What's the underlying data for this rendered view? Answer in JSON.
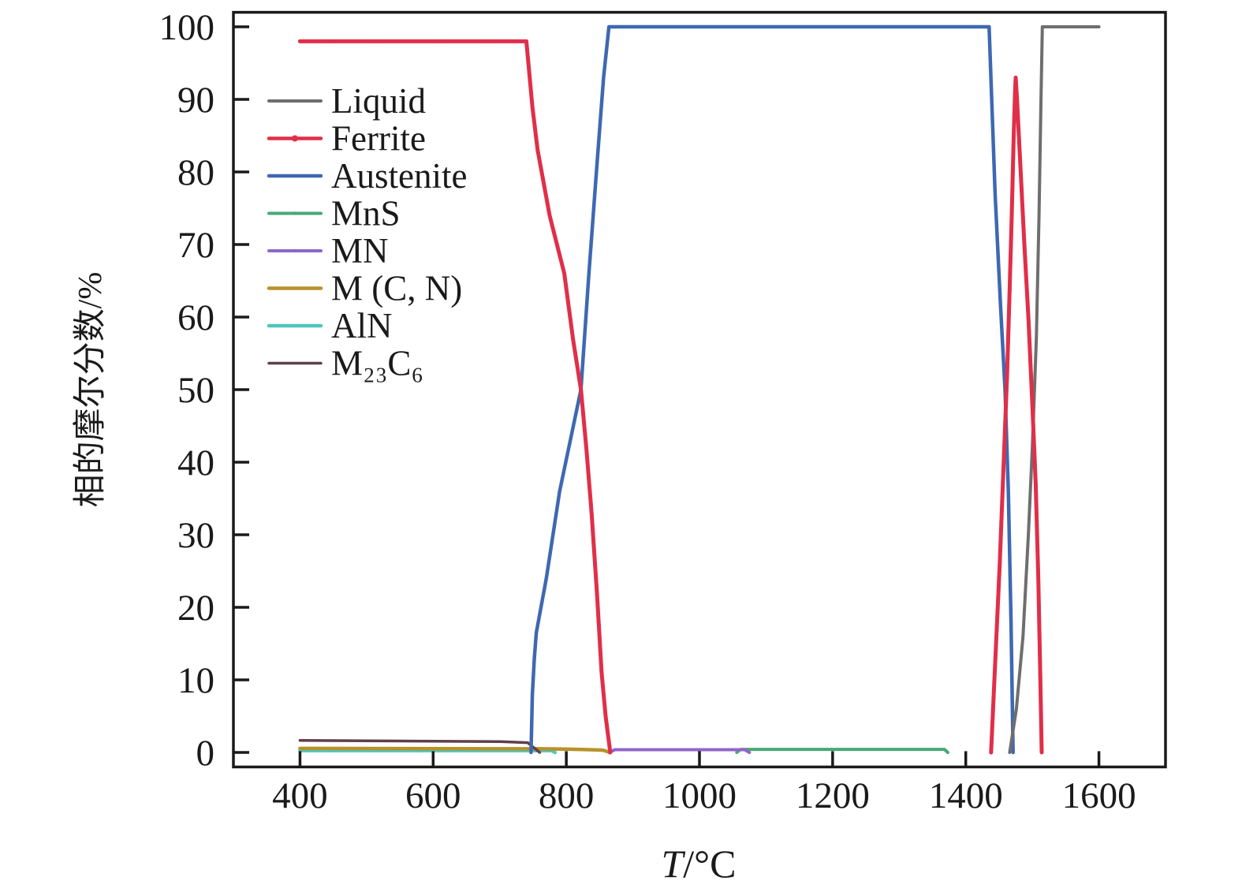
{
  "chart_data": {
    "type": "line",
    "title": "",
    "xlabel": "T/°C",
    "xlabel_italic": "T",
    "xlabel_rest": "/°C",
    "ylabel": "相的摩尔分数/%",
    "xlim": [
      300,
      1700
    ],
    "ylim": [
      -2,
      102
    ],
    "xticks": [
      400,
      600,
      800,
      1000,
      1200,
      1400,
      1600
    ],
    "yticks": [
      0,
      10,
      20,
      30,
      40,
      50,
      60,
      70,
      80,
      90,
      100
    ],
    "grid": false,
    "legend_position": "upper-left-inside",
    "frame_color": "#1a1a1a",
    "series": [
      {
        "name": "MnS",
        "label": "MnS",
        "color": "#49a877",
        "width": 4,
        "legend_marker_r": 2.2,
        "beads": false,
        "segments": [
          [
            [
              1056,
              0
            ],
            [
              1062,
              0.42
            ],
            [
              1368,
              0.42
            ],
            [
              1373,
              0
            ]
          ]
        ]
      },
      {
        "name": "MN",
        "label": "MN",
        "color": "#9065c8",
        "width": 4,
        "legend_marker_r": 2.2,
        "beads": false,
        "segments": [
          [
            [
              864,
              0
            ],
            [
              873,
              0.38
            ],
            [
              1068,
              0.38
            ],
            [
              1075,
              0
            ]
          ]
        ]
      },
      {
        "name": "AlN",
        "label": "AlN",
        "color": "#52c5bd",
        "width": 4.5,
        "legend_marker_r": 2.2,
        "beads": false,
        "segments": [
          [
            [
              400,
              0.26
            ],
            [
              778,
              0.26
            ],
            [
              783,
              0
            ]
          ]
        ]
      },
      {
        "name": "M(C,N)",
        "label": "M (C, N)",
        "color": "#b8922a",
        "width": 4.5,
        "legend_marker_r": 0,
        "beads": false,
        "segments": [
          [
            [
              400,
              0.55
            ],
            [
              760,
              0.5
            ],
            [
              800,
              0.46
            ],
            [
              835,
              0.38
            ],
            [
              855,
              0.32
            ],
            [
              866,
              0
            ]
          ]
        ]
      },
      {
        "name": "M23C6",
        "label": "M₂₃C₆",
        "color": "#5f3f4a",
        "width": 3.5,
        "legend_marker_r": 0,
        "beads": false,
        "segments": [
          [
            [
              400,
              1.65
            ],
            [
              600,
              1.55
            ],
            [
              700,
              1.5
            ],
            [
              742,
              1.35
            ],
            [
              760,
              0
            ]
          ]
        ]
      },
      {
        "name": "Austenite",
        "label": "Austenite",
        "color": "#3e68b2",
        "width": 4.5,
        "legend_marker_r": 0,
        "beads": false,
        "segments": [
          [
            [
              747,
              0
            ],
            [
              749,
              8
            ],
            [
              752,
              13
            ],
            [
              755,
              16.5
            ],
            [
              770,
              24
            ],
            [
              790,
              36
            ],
            [
              806,
              43
            ],
            [
              822,
              50
            ],
            [
              834,
              66
            ],
            [
              846,
              81
            ],
            [
              856,
              93
            ],
            [
              864,
              100
            ],
            [
              1435,
              100
            ],
            [
              1444,
              77
            ],
            [
              1452,
              62
            ],
            [
              1459,
              50
            ],
            [
              1464,
              36
            ],
            [
              1468,
              18
            ],
            [
              1471,
              0
            ]
          ]
        ]
      },
      {
        "name": "Liquid",
        "label": "Liquid",
        "color": "#6e6e6e",
        "width": 4,
        "legend_marker_r": 0,
        "beads": false,
        "segments": [
          [
            [
              1466,
              0
            ],
            [
              1476,
              6
            ],
            [
              1486,
              16
            ],
            [
              1494,
              30
            ],
            [
              1500,
              42
            ],
            [
              1506,
              57
            ],
            [
              1510,
              74
            ],
            [
              1513,
              90
            ],
            [
              1515,
              100
            ],
            [
              1600,
              100
            ]
          ]
        ]
      },
      {
        "name": "Ferrite",
        "label": "Ferrite",
        "color": "#e02f49",
        "width": 5,
        "legend_marker_r": 4,
        "beads": true,
        "segments": [
          [
            [
              400,
              98
            ],
            [
              740,
              98
            ],
            [
              749,
              89
            ],
            [
              757,
              83
            ],
            [
              775,
              74
            ],
            [
              797,
              66
            ],
            [
              810,
              57
            ],
            [
              822,
              50
            ],
            [
              830,
              42
            ],
            [
              838,
              33
            ],
            [
              846,
              22
            ],
            [
              853,
              11
            ],
            [
              859,
              5
            ],
            [
              866,
              0
            ]
          ],
          [
            [
              1438,
              0
            ],
            [
              1445,
              14
            ],
            [
              1451,
              26
            ],
            [
              1457,
              40
            ],
            [
              1462,
              52
            ],
            [
              1466,
              64
            ],
            [
              1469,
              74
            ],
            [
              1472,
              85
            ],
            [
              1474,
              91
            ],
            [
              1475,
              93
            ],
            [
              1477,
              90
            ],
            [
              1482,
              81
            ],
            [
              1488,
              70
            ],
            [
              1494,
              60
            ],
            [
              1500,
              48
            ],
            [
              1505,
              37
            ],
            [
              1509,
              24
            ],
            [
              1512,
              10
            ],
            [
              1514,
              0
            ]
          ]
        ]
      }
    ],
    "legend_order": [
      "Liquid",
      "Ferrite",
      "Austenite",
      "MnS",
      "MN",
      "M(C,N)",
      "AlN",
      "M23C6"
    ]
  }
}
